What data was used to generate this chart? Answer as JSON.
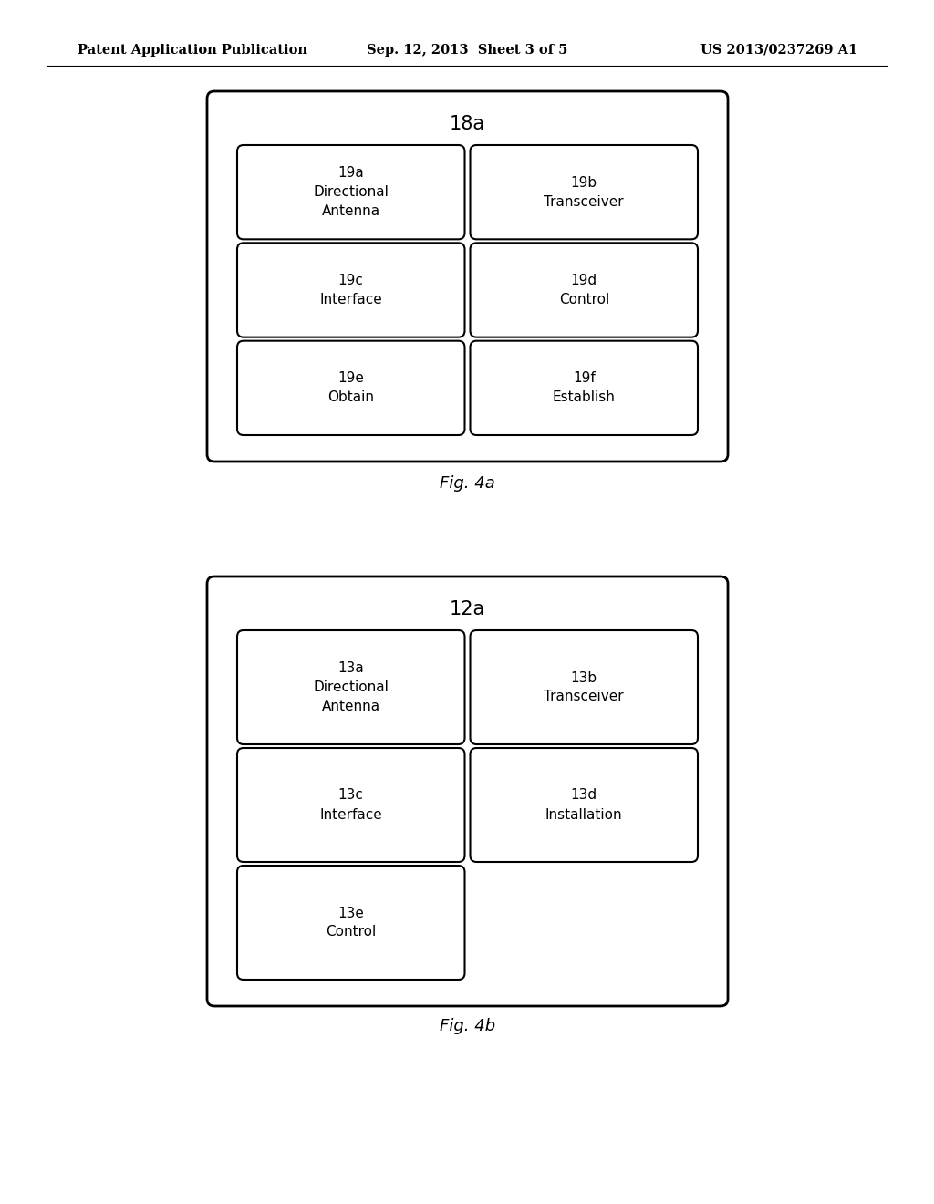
{
  "background_color": "#ffffff",
  "header_left": "Patent Application Publication",
  "header_center": "Sep. 12, 2013  Sheet 3 of 5",
  "header_right": "US 2013/0237269 A1",
  "header_fontsize": 10.5,
  "fig4a": {
    "outer_label": "18a",
    "caption": "Fig. 4a",
    "boxes": [
      {
        "id": "19a",
        "label": "19a\nDirectional\nAntenna",
        "col": 0,
        "row": 0
      },
      {
        "id": "19b",
        "label": "19b\nTransceiver",
        "col": 1,
        "row": 0
      },
      {
        "id": "19c",
        "label": "19c\nInterface",
        "col": 0,
        "row": 1
      },
      {
        "id": "19d",
        "label": "19d\nControl",
        "col": 1,
        "row": 1
      },
      {
        "id": "19e",
        "label": "19e\nObtain",
        "col": 0,
        "row": 2
      },
      {
        "id": "19f",
        "label": "19f\nEstablish",
        "col": 1,
        "row": 2
      }
    ]
  },
  "fig4b": {
    "outer_label": "12a",
    "caption": "Fig. 4b",
    "boxes": [
      {
        "id": "13a",
        "label": "13a\nDirectional\nAntenna",
        "col": 0,
        "row": 0
      },
      {
        "id": "13b",
        "label": "13b\nTransceiver",
        "col": 1,
        "row": 0
      },
      {
        "id": "13c",
        "label": "13c\nInterface",
        "col": 0,
        "row": 1
      },
      {
        "id": "13d",
        "label": "13d\nInstallation",
        "col": 1,
        "row": 1
      },
      {
        "id": "13e",
        "label": "13e\nControl",
        "col": 0,
        "row": 2
      }
    ]
  },
  "text_fontsize": 11,
  "caption_fontsize": 13,
  "outer_label_fontsize": 15
}
